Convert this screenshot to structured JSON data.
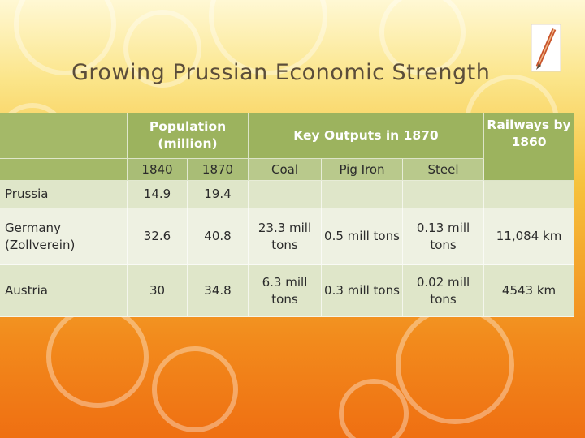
{
  "slide": {
    "title": "Growing Prussian Economic Strength",
    "icons": [
      "pencil-icon"
    ],
    "colors": {
      "header": "#9cb35e",
      "subheader": "#b9c98c",
      "row": "#dfe6c9",
      "title": "#5b4d3a"
    }
  },
  "table": {
    "headers": {
      "population": "Population (million)",
      "outputs": "Key Outputs in 1870",
      "railways": "Railways by 1860"
    },
    "subheaders": [
      "1840",
      "1870",
      "Coal",
      "Pig Iron",
      "Steel"
    ],
    "rows": [
      {
        "country": "Prussia",
        "pop1840": "14.9",
        "pop1870": "19.4",
        "coal": "",
        "pig_iron": "",
        "steel": "",
        "railways": ""
      },
      {
        "country": "Germany (Zollverein)",
        "pop1840": "32.6",
        "pop1870": "40.8",
        "coal": "23.3 mill tons",
        "pig_iron": "0.5 mill tons",
        "steel": "0.13 mill tons",
        "railways": "11,084 km"
      },
      {
        "country": "Austria",
        "pop1840": "30",
        "pop1870": "34.8",
        "coal": "6.3 mill tons",
        "pig_iron": "0.3 mill tons",
        "steel": "0.02 mill tons",
        "railways": "4543 km"
      }
    ]
  }
}
